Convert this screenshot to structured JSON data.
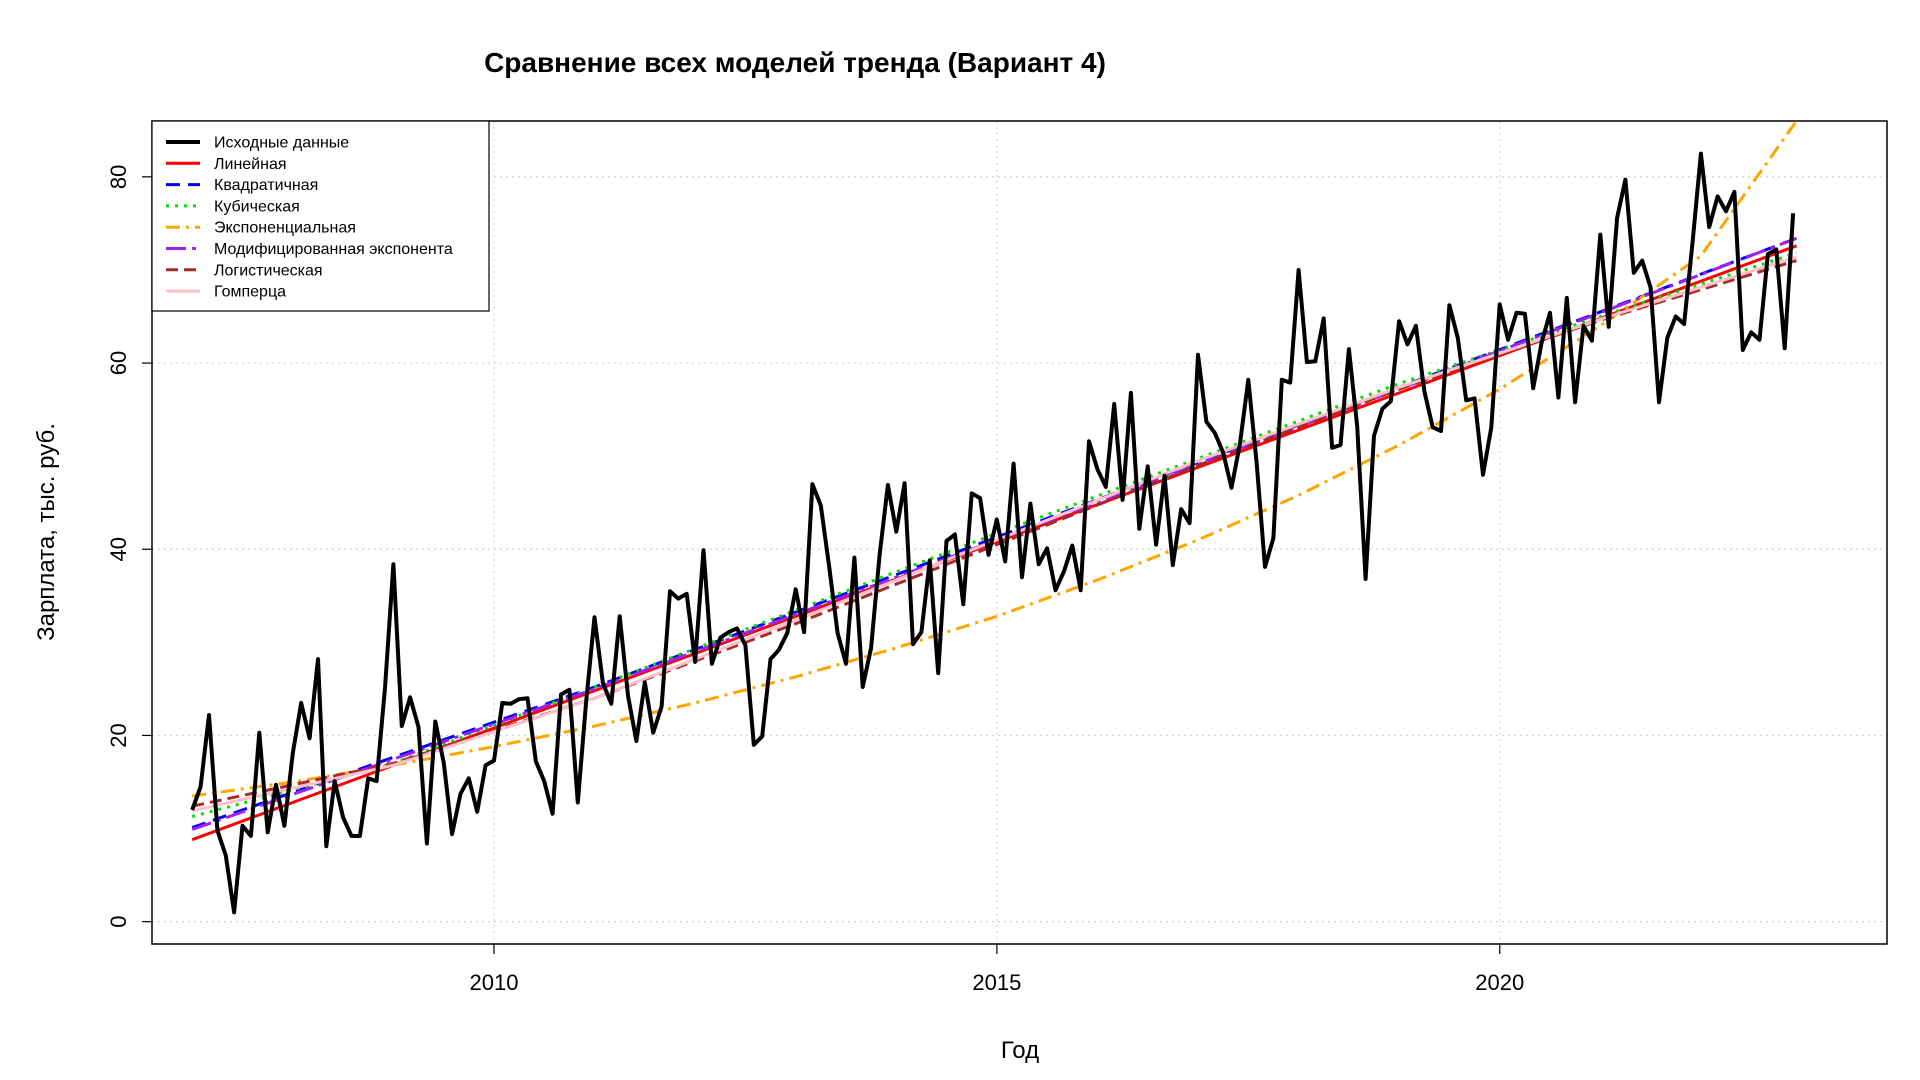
{
  "chart_data": {
    "type": "line",
    "title": "Сравнение всех моделей тренда (Вариант 4)",
    "xlabel": "Год",
    "ylabel": "Зарплата, тыс. руб.",
    "xlim": [
      2006.6,
      2023.85
    ],
    "ylim": [
      -2.4,
      86
    ],
    "x_ticks": [
      2010,
      2015,
      2020
    ],
    "y_ticks": [
      0,
      20,
      40,
      60,
      80
    ],
    "grid": true,
    "legend_position": "top-left",
    "series": [
      {
        "name": "Исходные данные",
        "color": "#000000",
        "dash": "solid",
        "width": 4,
        "x_start": 2007.0,
        "x_step": 0.08333,
        "values": [
          12.0,
          14.5,
          22.2,
          9.8,
          7.1,
          1.0,
          10.3,
          9.2,
          20.3,
          9.6,
          14.7,
          10.3,
          18.1,
          23.5,
          19.7,
          28.2,
          8.1,
          15.1,
          11.2,
          9.2,
          9.2,
          15.4,
          15.1,
          25.1,
          38.4,
          21.0,
          24.1,
          20.9,
          8.4,
          21.5,
          17.1,
          9.4,
          13.7,
          15.4,
          11.8,
          16.8,
          17.3,
          23.5,
          23.4,
          23.9,
          24.0,
          17.2,
          15.1,
          11.6,
          24.4,
          24.9,
          12.8,
          23.7,
          32.7,
          25.6,
          23.4,
          32.8,
          24.2,
          19.4,
          25.7,
          20.3,
          23.1,
          35.5,
          34.7,
          35.2,
          27.9,
          39.9,
          27.7,
          30.5,
          31.1,
          31.5,
          29.7,
          19.0,
          19.9,
          28.2,
          29.2,
          31.0,
          35.7,
          31.1,
          47.0,
          44.7,
          38.1,
          31.0,
          27.7,
          39.1,
          25.2,
          29.4,
          39.3,
          46.9,
          41.9,
          47.1,
          29.8,
          31.1,
          38.8,
          26.7,
          40.9,
          41.6,
          34.1,
          46.0,
          45.5,
          39.4,
          43.2,
          38.7,
          49.2,
          37.0,
          44.9,
          38.4,
          40.1,
          35.6,
          37.6,
          40.4,
          35.6,
          51.6,
          48.6,
          46.7,
          55.6,
          45.3,
          56.8,
          42.2,
          48.9,
          40.5,
          47.9,
          38.3,
          44.3,
          42.8,
          60.9,
          53.7,
          52.5,
          50.4,
          46.6,
          51.3,
          58.2,
          49.2,
          38.1,
          41.2,
          58.2,
          57.9,
          70.0,
          60.1,
          60.2,
          64.8,
          50.9,
          51.2,
          61.5,
          53.2,
          36.8,
          52.2,
          55.1,
          55.9,
          64.5,
          62.0,
          64.0,
          57.0,
          53.1,
          52.7,
          66.2,
          62.7,
          56.0,
          56.2,
          48.0,
          53.1,
          66.3,
          62.5,
          65.4,
          65.3,
          57.3,
          62.2,
          65.4,
          56.3,
          67.0,
          55.8,
          64.0,
          62.4,
          73.8,
          63.9,
          75.6,
          79.7,
          69.7,
          71.0,
          68.1,
          55.8,
          62.7,
          65.0,
          64.2,
          72.9,
          82.5,
          74.6,
          77.9,
          76.3,
          78.4,
          61.4,
          63.3,
          62.5,
          71.7,
          72.2,
          61.6,
          76.1
        ]
      },
      {
        "name": "Линейная",
        "color": "#ff0000",
        "dash": "solid",
        "width": 3,
        "x": [
          2007.0,
          2022.95
        ],
        "values": [
          8.8,
          72.6
        ]
      },
      {
        "name": "Квадратичная",
        "color": "#0000ff",
        "dash": "14 8",
        "width": 3,
        "x": [
          2007.0,
          2011.0,
          2015.0,
          2019.0,
          2022.95
        ],
        "values": [
          10.1,
          25.2,
          41.3,
          57.4,
          73.4
        ]
      },
      {
        "name": "Кубическая",
        "color": "#00e000",
        "dash": "3 6",
        "width": 3,
        "x": [
          2007.0,
          2009.0,
          2011.0,
          2015.0,
          2019.0,
          2021.0,
          2022.95
        ],
        "values": [
          11.3,
          17.0,
          25.2,
          41.7,
          57.8,
          65.0,
          71.8
        ]
      },
      {
        "name": "Экспоненциальная",
        "color": "#ffa500",
        "dash": "14 6 3 6",
        "width": 3,
        "x": [
          2007.0,
          2008.0,
          2009.0,
          2010.0,
          2011.0,
          2012.0,
          2013.0,
          2014.0,
          2015.0,
          2016.0,
          2017.0,
          2018.0,
          2019.0,
          2020.0,
          2021.0,
          2022.0,
          2022.95
        ],
        "values": [
          13.5,
          15.0,
          16.8,
          18.8,
          21.0,
          23.5,
          26.3,
          29.4,
          32.8,
          36.7,
          41.0,
          45.8,
          51.2,
          57.2,
          64.0,
          71.5,
          86.0
        ]
      },
      {
        "name": "Модифицированная экспонента",
        "color": "#a020f0",
        "dash": "20 6 4 6",
        "width": 3,
        "x": [
          2007.0,
          2011.0,
          2015.0,
          2019.0,
          2022.95
        ],
        "values": [
          9.9,
          25.0,
          41.0,
          57.2,
          73.4
        ]
      },
      {
        "name": "Логистическая",
        "color": "#a52a2a",
        "dash": "12 6",
        "width": 3,
        "x": [
          2007.0,
          2009.0,
          2011.0,
          2013.0,
          2015.0,
          2017.0,
          2019.0,
          2021.0,
          2022.95
        ],
        "values": [
          12.4,
          17.0,
          24.0,
          32.0,
          40.5,
          49.0,
          57.2,
          64.6,
          71.0
        ]
      },
      {
        "name": "Гомперца",
        "color": "#ffc0cb",
        "dash": "solid",
        "width": 3,
        "x": [
          2007.0,
          2009.0,
          2011.0,
          2013.0,
          2015.0,
          2017.0,
          2019.0,
          2021.0,
          2022.95
        ],
        "values": [
          11.9,
          16.8,
          24.0,
          32.4,
          41.0,
          49.5,
          57.4,
          64.7,
          71.4
        ]
      }
    ]
  }
}
